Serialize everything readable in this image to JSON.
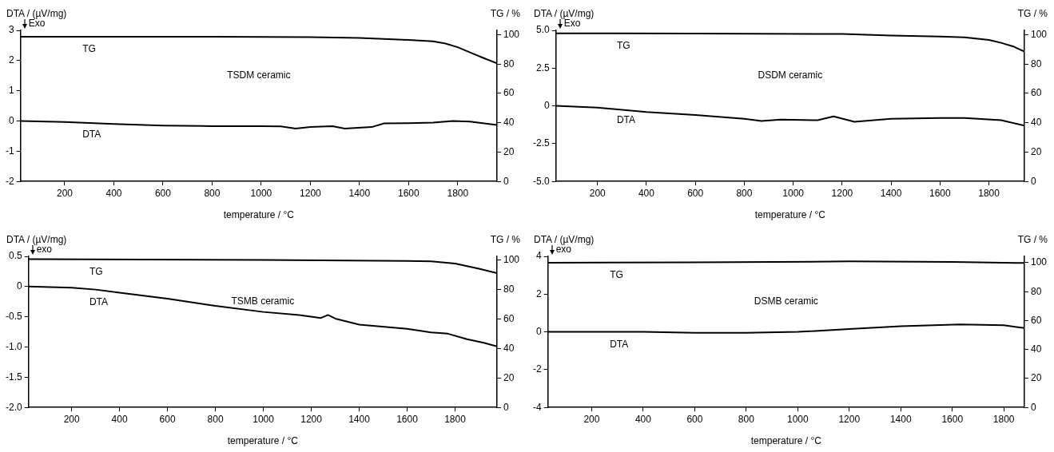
{
  "chart_data": [
    {
      "type": "line",
      "title": "TSDM ceramic",
      "xlabel": "temperature / °C",
      "ylabel": "DTA / (µV/mg)",
      "y2label": "TG / %",
      "annotations": [
        "Exo"
      ],
      "marker": "none",
      "line_style": "solid",
      "xlim": [
        20,
        1960
      ],
      "xticks": [
        200,
        400,
        600,
        800,
        1000,
        1200,
        1400,
        1600,
        1800
      ],
      "ylim": [
        -2,
        3
      ],
      "yticks": [
        -2,
        -1,
        0,
        1,
        2,
        3
      ],
      "y2lim": [
        0,
        103
      ],
      "y2ticks": [
        0,
        20,
        40,
        60,
        80,
        100
      ],
      "series": [
        {
          "name": "TG",
          "color": "#000000",
          "axis": "y2",
          "x": [
            20,
            400,
            800,
            1200,
            1400,
            1600,
            1700,
            1750,
            1800,
            1850,
            1900,
            1960
          ],
          "values": [
            98.6,
            98.6,
            98.6,
            98.4,
            97.8,
            96.5,
            95.5,
            94,
            91.5,
            88,
            84.5,
            80.5
          ]
        },
        {
          "name": "DTA",
          "color": "#000000",
          "x": [
            20,
            200,
            400,
            600,
            800,
            1000,
            1080,
            1140,
            1200,
            1290,
            1340,
            1450,
            1500,
            1600,
            1700,
            1780,
            1850,
            1960
          ],
          "values": [
            0,
            -0.03,
            -0.1,
            -0.15,
            -0.17,
            -0.17,
            -0.18,
            -0.25,
            -0.2,
            -0.17,
            -0.25,
            -0.2,
            -0.08,
            -0.07,
            -0.05,
            0,
            -0.02,
            -0.13
          ]
        }
      ]
    },
    {
      "type": "line",
      "title": "DSDM ceramic",
      "xlabel": "temperature / °C",
      "ylabel": "DTA / (µV/mg)",
      "y2label": "TG / %",
      "annotations": [
        "Exo"
      ],
      "marker": "none",
      "line_style": "solid",
      "xlim": [
        30,
        1945
      ],
      "xticks": [
        200,
        400,
        600,
        800,
        1000,
        1200,
        1400,
        1600,
        1800
      ],
      "ylim": [
        -5,
        5
      ],
      "yticks": [
        {
          "value": -5,
          "label": "-5.0"
        },
        -2.5,
        0,
        2.5,
        {
          "value": 5,
          "label": "5.0"
        }
      ],
      "y2lim": [
        0,
        103
      ],
      "y2ticks": [
        0,
        20,
        40,
        60,
        80,
        100
      ],
      "series": [
        {
          "name": "TG",
          "color": "#000000",
          "axis": "y2",
          "x": [
            30,
            600,
            1200,
            1400,
            1600,
            1700,
            1800,
            1850,
            1900,
            1945
          ],
          "values": [
            101,
            100.8,
            100.5,
            99.5,
            98.8,
            98.2,
            96.5,
            94.5,
            92,
            88.5
          ]
        },
        {
          "name": "DTA",
          "color": "#000000",
          "x": [
            30,
            200,
            400,
            600,
            800,
            870,
            950,
            1100,
            1165,
            1250,
            1400,
            1600,
            1700,
            1850,
            1945
          ],
          "values": [
            0,
            -0.12,
            -0.4,
            -0.6,
            -0.85,
            -1.0,
            -0.9,
            -0.95,
            -0.7,
            -1.05,
            -0.85,
            -0.8,
            -0.8,
            -0.95,
            -1.3
          ]
        }
      ]
    },
    {
      "type": "line",
      "title": "TSMB ceramic",
      "xlabel": "temperature / °C",
      "ylabel": "DTA / (µV/mg)",
      "y2label": "TG / %",
      "annotations": [
        "exo"
      ],
      "marker": "none",
      "line_style": "solid",
      "xlim": [
        20,
        1975
      ],
      "xticks": [
        200,
        400,
        600,
        800,
        1000,
        1200,
        1400,
        1600,
        1800
      ],
      "ylim": [
        -2,
        0.5
      ],
      "yticks": [
        {
          "value": -2,
          "label": "-2.0"
        },
        -1.5,
        {
          "value": -1,
          "label": "-1.0"
        },
        -0.5,
        0,
        0.5
      ],
      "y2lim": [
        0,
        102.4
      ],
      "y2ticks": [
        0,
        20,
        40,
        60,
        80,
        100
      ],
      "series": [
        {
          "name": "TG",
          "color": "#000000",
          "axis": "y2",
          "x": [
            20,
            1000,
            1600,
            1700,
            1800,
            1900,
            1975
          ],
          "values": [
            100.5,
            100,
            99.3,
            99,
            97.5,
            94,
            91
          ]
        },
        {
          "name": "DTA",
          "color": "#000000",
          "x": [
            20,
            200,
            300,
            400,
            600,
            800,
            1000,
            1150,
            1240,
            1270,
            1300,
            1400,
            1600,
            1700,
            1770,
            1850,
            1920,
            1975
          ],
          "values": [
            0,
            -0.02,
            -0.05,
            -0.1,
            -0.2,
            -0.32,
            -0.42,
            -0.47,
            -0.52,
            -0.47,
            -0.53,
            -0.63,
            -0.7,
            -0.76,
            -0.78,
            -0.87,
            -0.93,
            -0.99
          ]
        }
      ]
    },
    {
      "type": "line",
      "title": "DSMB ceramic",
      "xlabel": "temperature / °C",
      "ylabel": "DTA / (µV/mg)",
      "y2label": "TG / %",
      "annotations": [
        "exo"
      ],
      "marker": "none",
      "line_style": "solid",
      "xlim": [
        30,
        1880
      ],
      "xticks": [
        200,
        400,
        600,
        800,
        1000,
        1200,
        1400,
        1600,
        1800
      ],
      "ylim": [
        -4,
        4
      ],
      "yticks": [
        -4,
        -2,
        0,
        2,
        4
      ],
      "y2lim": [
        0,
        104.4
      ],
      "y2ticks": [
        0,
        20,
        40,
        60,
        80,
        100
      ],
      "series": [
        {
          "name": "TG",
          "color": "#000000",
          "axis": "y2",
          "x": [
            30,
            600,
            1200,
            1600,
            1880
          ],
          "values": [
            100,
            100.2,
            100.9,
            100.5,
            99.8
          ]
        },
        {
          "name": "DTA",
          "color": "#000000",
          "x": [
            30,
            400,
            600,
            800,
            1000,
            1200,
            1400,
            1630,
            1800,
            1880
          ],
          "values": [
            0,
            0,
            -0.05,
            -0.05,
            0,
            0.15,
            0.3,
            0.4,
            0.35,
            0.2
          ]
        }
      ]
    }
  ]
}
